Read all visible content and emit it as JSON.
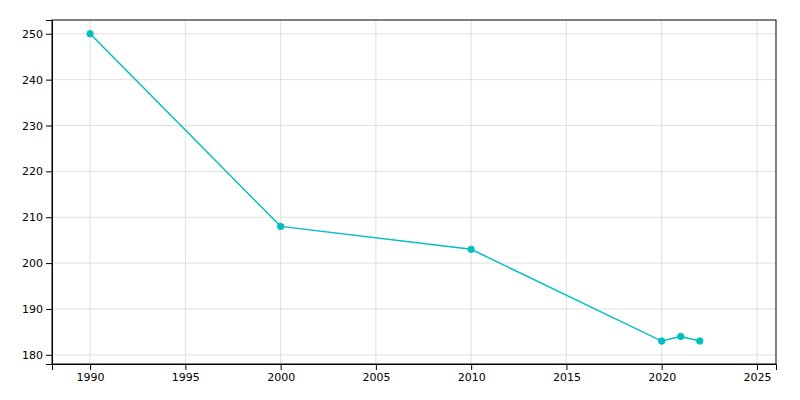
{
  "chart_data": {
    "type": "line",
    "x": [
      1990,
      2000,
      2010,
      2020,
      2021,
      2022
    ],
    "values": [
      250,
      208,
      203,
      183,
      184,
      183
    ],
    "color": "#00BFBF",
    "marker": "circle",
    "xlim": [
      1988,
      2026
    ],
    "ylim": [
      178,
      253
    ],
    "xticks": [
      1990,
      1995,
      2000,
      2005,
      2010,
      2015,
      2020,
      2025
    ],
    "yticks": [
      180,
      190,
      200,
      210,
      220,
      230,
      240,
      250
    ],
    "grid": true
  }
}
